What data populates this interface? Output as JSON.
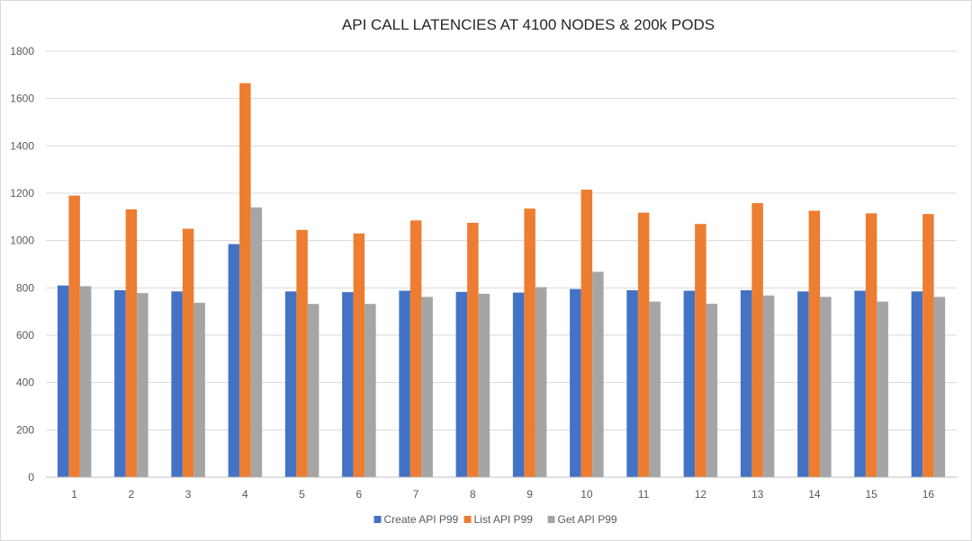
{
  "chart_data": {
    "type": "bar",
    "title": "API CALL LATENCIES AT 4100 NODES & 200k PODS",
    "xlabel": "",
    "ylabel": "",
    "ylim": [
      0,
      1800
    ],
    "yticks": [
      0,
      200,
      400,
      600,
      800,
      1000,
      1200,
      1400,
      1600,
      1800
    ],
    "grid": true,
    "legend_position": "bottom",
    "categories": [
      "1",
      "2",
      "3",
      "4",
      "5",
      "6",
      "7",
      "8",
      "9",
      "10",
      "11",
      "12",
      "13",
      "14",
      "15",
      "16"
    ],
    "series": [
      {
        "name": "Create API P99",
        "color": "#4472c4",
        "values": [
          810,
          790,
          785,
          985,
          785,
          782,
          788,
          783,
          780,
          795,
          790,
          788,
          790,
          785,
          788,
          785
        ]
      },
      {
        "name": "List API P99",
        "color": "#ed7d31",
        "values": [
          1190,
          1132,
          1050,
          1665,
          1045,
          1030,
          1085,
          1075,
          1135,
          1215,
          1118,
          1070,
          1158,
          1126,
          1115,
          1112
        ]
      },
      {
        "name": "Get API P99",
        "color": "#a5a5a5",
        "values": [
          807,
          778,
          737,
          1140,
          732,
          732,
          762,
          775,
          803,
          868,
          742,
          733,
          768,
          762,
          742,
          762
        ]
      }
    ]
  }
}
